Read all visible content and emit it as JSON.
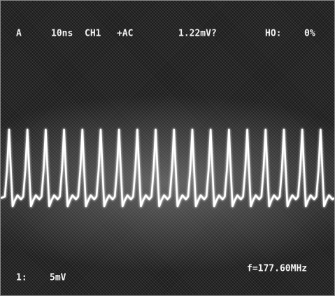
{
  "status_top": {
    "trigger": "A",
    "timebase": "10ns",
    "channel": "CH1",
    "coupling": "+AC",
    "reading": "1.22mV?",
    "holdoff_label": "HO:",
    "holdoff_value": "0%"
  },
  "status_bottom": {
    "channel_number": "1:",
    "scale": "5mV",
    "frequency": "f=177.60MHz"
  }
}
